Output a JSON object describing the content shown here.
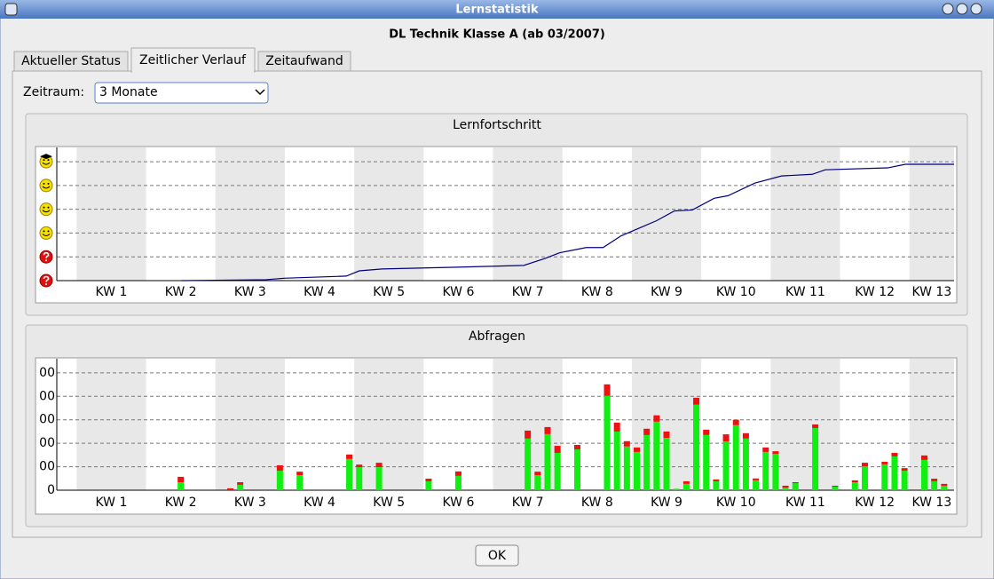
{
  "window": {
    "title": "Lernstatistik"
  },
  "header": "DL Technik Klasse A (ab 03/2007)",
  "tabs": [
    "Aktueller Status",
    "Zeitlicher Verlauf",
    "Zeitaufwand"
  ],
  "period": {
    "label": "Zeitraum:",
    "value": "3 Monate"
  },
  "button": "OK",
  "chart_data": [
    {
      "type": "line",
      "title": "Lernfortschritt",
      "categories": [
        "KW 1",
        "KW 2",
        "KW 3",
        "KW 4",
        "KW 5",
        "KW 6",
        "KW 7",
        "KW 8",
        "KW 9",
        "KW 10",
        "KW 11",
        "KW 12",
        "KW 13"
      ],
      "x": [
        10.6,
        19.1,
        20.9,
        27.2,
        28.5,
        30.8,
        37.9,
        45.1,
        47.3,
        48.7,
        51.4,
        53.1,
        54.9,
        58.5,
        60.3,
        62.1,
        64.3,
        65.7,
        68.4,
        71.1,
        74.2,
        75.5,
        81.8,
        83.6,
        88.5
      ],
      "values": [
        0,
        0.04,
        0.1,
        0.19,
        0.41,
        0.49,
        0.56,
        0.64,
        0.94,
        1.17,
        1.39,
        1.39,
        1.88,
        2.52,
        2.93,
        2.97,
        3.46,
        3.57,
        4.1,
        4.4,
        4.47,
        4.66,
        4.74,
        4.89,
        4.89
      ],
      "color": "#000080",
      "xlim": [
        -2,
        88.5
      ],
      "ylim": [
        0,
        5.6
      ],
      "yticks": [
        0,
        1,
        2,
        3,
        4,
        5
      ],
      "grid": true
    },
    {
      "type": "bar",
      "title": "Abfragen",
      "categories": [
        "KW 1",
        "KW 2",
        "KW 3",
        "KW 4",
        "KW 5",
        "KW 6",
        "KW 7",
        "KW 8",
        "KW 9",
        "KW 10",
        "KW 11",
        "KW 12",
        "KW 13"
      ],
      "x": [
        10,
        15,
        16,
        20,
        22,
        27,
        28,
        30,
        35,
        38,
        45,
        46,
        47,
        48,
        50,
        53,
        54,
        55,
        56,
        57,
        58,
        59,
        60,
        61,
        62,
        63,
        64,
        65,
        66,
        67,
        68,
        69,
        70,
        71,
        72,
        74,
        76,
        78,
        79,
        81,
        82,
        83,
        85,
        86,
        87
      ],
      "series": [
        {
          "color": "#11ee11",
          "values": [
            34,
            0,
            23,
            83,
            64,
            133,
            98,
            98,
            38,
            61,
            220,
            64,
            239,
            159,
            174,
            402,
            250,
            186,
            163,
            235,
            292,
            223,
            6,
            27,
            364,
            235,
            38,
            208,
            277,
            220,
            42,
            163,
            155,
            11,
            30,
            265,
            15,
            34,
            102,
            110,
            144,
            83,
            129,
            38,
            19
          ]
        },
        {
          "color": "#ee1111",
          "values": [
            23,
            8,
            11,
            23,
            15,
            19,
            11,
            19,
            11,
            19,
            34,
            15,
            30,
            30,
            19,
            49,
            38,
            23,
            19,
            27,
            27,
            27,
            0,
            11,
            30,
            23,
            8,
            30,
            23,
            23,
            8,
            19,
            11,
            8,
            4,
            15,
            4,
            8,
            15,
            11,
            15,
            11,
            19,
            11,
            8
          ]
        }
      ],
      "xlim": [
        -2,
        88.5
      ],
      "ylim": [
        0,
        560
      ],
      "yticks": [
        0,
        {
          "value": 100,
          "label": "00"
        },
        {
          "value": 200,
          "label": "00"
        },
        {
          "value": 300,
          "label": "00"
        },
        {
          "value": 400,
          "label": "00"
        },
        {
          "value": 500,
          "label": "00"
        }
      ],
      "grid": true
    }
  ]
}
